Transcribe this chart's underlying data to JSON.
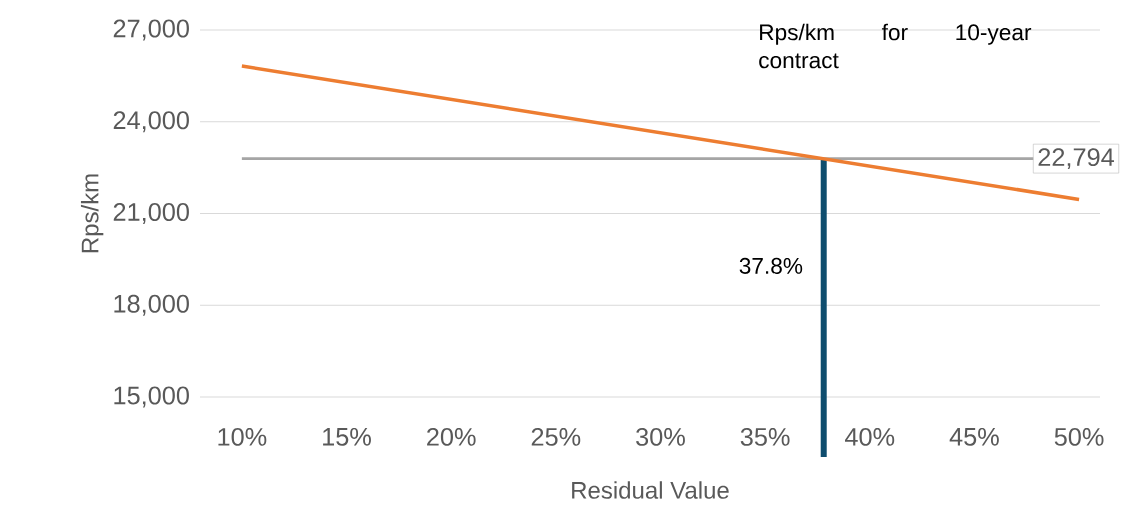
{
  "chart_data": {
    "type": "line",
    "xlabel": "Residual Value",
    "ylabel": "Rps/km",
    "x": [
      10,
      50
    ],
    "series": [
      {
        "color": "#ed7d31",
        "values": [
          25820,
          21460
        ]
      }
    ],
    "xlim": [
      8,
      51
    ],
    "ylim": [
      15000,
      27000
    ],
    "xticks": [
      {
        "value": 10,
        "label": "10%"
      },
      {
        "value": 15,
        "label": "15%"
      },
      {
        "value": 20,
        "label": "20%"
      },
      {
        "value": 25,
        "label": "25%"
      },
      {
        "value": 30,
        "label": "30%"
      },
      {
        "value": 35,
        "label": "35%"
      },
      {
        "value": 40,
        "label": "40%"
      },
      {
        "value": 45,
        "label": "45%"
      },
      {
        "value": 50,
        "label": "50%"
      }
    ],
    "yticks": [
      {
        "value": 15000,
        "label": "15,000"
      },
      {
        "value": 18000,
        "label": "18,000"
      },
      {
        "value": 21000,
        "label": "21,000"
      },
      {
        "value": 24000,
        "label": "24,000"
      },
      {
        "value": 27000,
        "label": "27,000"
      }
    ],
    "grid": "y",
    "marker": "none",
    "line_style": "solid",
    "ref_lines": [
      {
        "axis": "y",
        "value": 22794,
        "label": "22,794",
        "color": "#a5a5a5"
      },
      {
        "axis": "x",
        "value": 37.8,
        "label": "37.8%",
        "color": "#0e4d6e"
      }
    ],
    "annotations": [
      "Rps/km for 10-year contract"
    ]
  }
}
